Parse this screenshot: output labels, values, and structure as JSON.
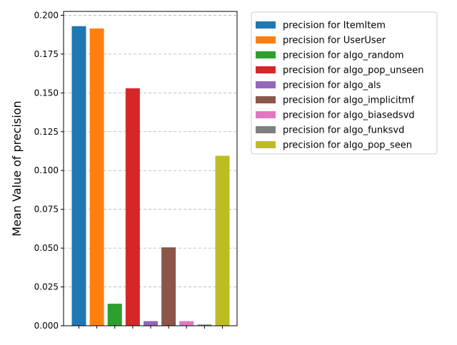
{
  "chart_data": {
    "type": "bar",
    "title": "",
    "xlabel": "",
    "ylabel": "Mean Value of precision",
    "ylim": [
      0,
      0.2025
    ],
    "yticks": [
      0.0,
      0.025,
      0.05,
      0.075,
      0.1,
      0.125,
      0.15,
      0.175,
      0.2
    ],
    "ytick_labels": [
      "0.000",
      "0.025",
      "0.050",
      "0.075",
      "0.100",
      "0.125",
      "0.150",
      "0.175",
      "0.200"
    ],
    "grid": "y-dashed",
    "legend_position": "outside-top-right",
    "series": [
      {
        "name": "precision for ItemItem",
        "value": 0.193,
        "color": "#1f77b4"
      },
      {
        "name": "precision for UserUser",
        "value": 0.1915,
        "color": "#ff7f0e"
      },
      {
        "name": "precision for algo_random",
        "value": 0.0142,
        "color": "#2ca02c"
      },
      {
        "name": "precision for algo_pop_unseen",
        "value": 0.153,
        "color": "#d62728"
      },
      {
        "name": "precision for algo_als",
        "value": 0.003,
        "color": "#9467bd"
      },
      {
        "name": "precision for algo_implicitmf",
        "value": 0.0505,
        "color": "#8c564b"
      },
      {
        "name": "precision for algo_biasedsvd",
        "value": 0.003,
        "color": "#e377c2"
      },
      {
        "name": "precision for algo_funksvd",
        "value": 0.0008,
        "color": "#7f7f7f"
      },
      {
        "name": "precision for algo_pop_seen",
        "value": 0.1095,
        "color": "#bcbd22"
      }
    ]
  }
}
